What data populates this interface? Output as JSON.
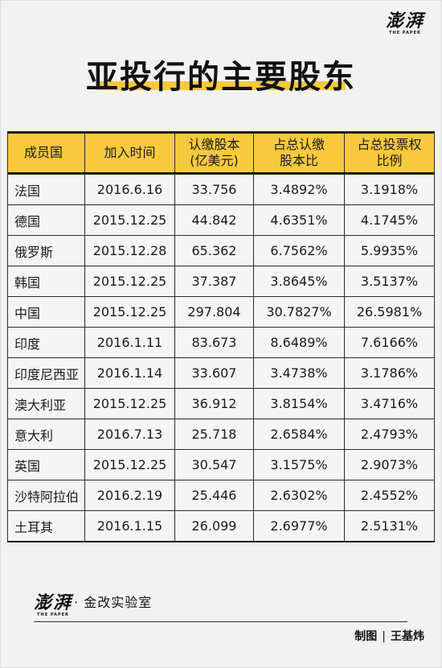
{
  "brand": {
    "name_cn": "澎湃",
    "name_en": "THE PAPER",
    "sub": "· 金改实验室"
  },
  "title": "亚投行的主要股东",
  "table": {
    "headers": [
      {
        "line1": "成员国",
        "line2": ""
      },
      {
        "line1": "加入时间",
        "line2": ""
      },
      {
        "line1": "认缴股本",
        "line2": "(亿美元)"
      },
      {
        "line1": "占总认缴",
        "line2": "股本比"
      },
      {
        "line1": "占总投票权",
        "line2": "比例"
      }
    ],
    "rows": [
      {
        "country": "法国",
        "date": "2016.6.16",
        "capital": "33.756",
        "share": "3.4892%",
        "vote": "3.1918%"
      },
      {
        "country": "德国",
        "date": "2015.12.25",
        "capital": "44.842",
        "share": "4.6351%",
        "vote": "4.1745%"
      },
      {
        "country": "俄罗斯",
        "date": "2015.12.28",
        "capital": "65.362",
        "share": "6.7562%",
        "vote": "5.9935%"
      },
      {
        "country": "韩国",
        "date": "2015.12.25",
        "capital": "37.387",
        "share": "3.8645%",
        "vote": "3.5137%"
      },
      {
        "country": "中国",
        "date": "2015.12.25",
        "capital": "297.804",
        "share": "30.7827%",
        "vote": "26.5981%"
      },
      {
        "country": "印度",
        "date": "2016.1.11",
        "capital": "83.673",
        "share": "8.6489%",
        "vote": "7.6166%"
      },
      {
        "country": "印度尼西亚",
        "date": "2016.1.14",
        "capital": "33.607",
        "share": "3.4738%",
        "vote": "3.1786%"
      },
      {
        "country": "澳大利亚",
        "date": "2015.12.25",
        "capital": "36.912",
        "share": "3.8154%",
        "vote": "3.4716%"
      },
      {
        "country": "意大利",
        "date": "2016.7.13",
        "capital": "25.718",
        "share": "2.6584%",
        "vote": "2.4793%"
      },
      {
        "country": "英国",
        "date": "2015.12.25",
        "capital": "30.547",
        "share": "3.1575%",
        "vote": "2.9073%"
      },
      {
        "country": "沙特阿拉伯",
        "date": "2016.2.19",
        "capital": "25.446",
        "share": "2.6302%",
        "vote": "2.4552%"
      },
      {
        "country": "土耳其",
        "date": "2016.1.15",
        "capital": "26.099",
        "share": "2.6977%",
        "vote": "2.5131%"
      }
    ]
  },
  "credit": {
    "label": "制图",
    "separator": "|",
    "author": "王基炜"
  },
  "colors": {
    "header_bg": "#f9c93d",
    "underline": "#f9c93d",
    "text": "#111111",
    "background": "#f2f2f2"
  }
}
